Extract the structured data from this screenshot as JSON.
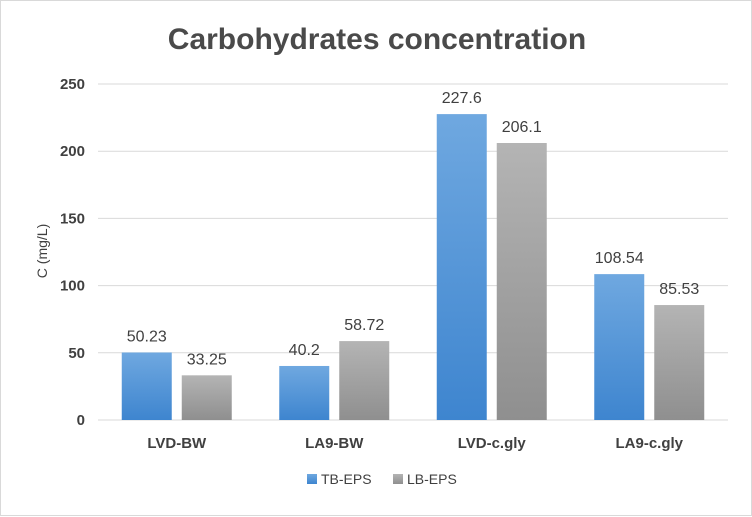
{
  "chart_data": {
    "type": "bar",
    "title": "Carbohydrates concentration",
    "xlabel": "",
    "ylabel": "C (mg/L)",
    "ylim": [
      0,
      250
    ],
    "yticks": [
      0,
      50,
      100,
      150,
      200,
      250
    ],
    "grid": true,
    "legend_position": "bottom",
    "categories": [
      "LVD-BW",
      "LA9-BW",
      "LVD-c.gly",
      "LA9-c.gly"
    ],
    "series": [
      {
        "name": "TB-EPS",
        "color": "#5b9bd5",
        "values": [
          50.23,
          40.2,
          227.6,
          108.54
        ],
        "labels": [
          "50.23",
          "40.2",
          "227.6",
          "108.54"
        ]
      },
      {
        "name": "LB-EPS",
        "color": "#a5a5a5",
        "values": [
          33.25,
          58.72,
          206.1,
          85.53
        ],
        "labels": [
          "33.25",
          "58.72",
          "206.1",
          "85.53"
        ]
      }
    ]
  }
}
